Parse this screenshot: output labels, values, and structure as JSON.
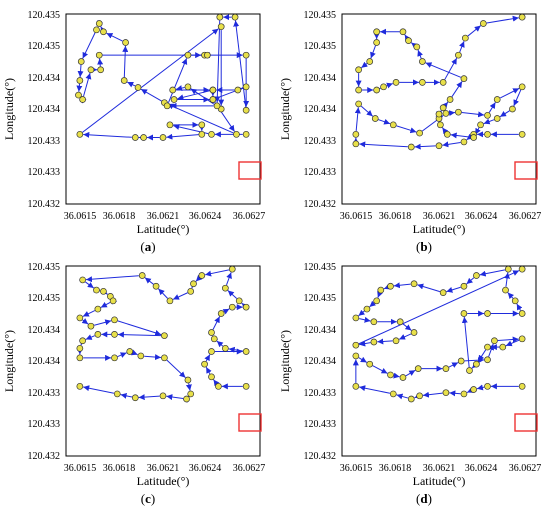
{
  "chart_data": [
    {
      "type": "line",
      "panel_label": "a",
      "xlabel": "Latitude(°)",
      "ylabel": "Longitude(°)",
      "xlim": [
        36.0614,
        36.0628
      ],
      "ylim": [
        120.432,
        120.435
      ],
      "xticks": [
        "36.0615",
        "36.0618",
        "36.0621",
        "36.0624",
        "36.0627"
      ],
      "yticks": [
        "120.432",
        "120.433",
        "120.433",
        "120.434",
        "120.434",
        "120.435",
        "120.435"
      ],
      "points": [
        [
          36.0627,
          120.4331
        ],
        [
          36.06245,
          120.4331
        ],
        [
          36.06215,
          120.43325
        ],
        [
          36.06238,
          120.43325
        ],
        [
          36.06238,
          120.4331
        ],
        [
          36.0621,
          120.43305
        ],
        [
          36.06196,
          120.43305
        ],
        [
          36.0619,
          120.43305
        ],
        [
          36.0615,
          120.4331
        ],
        [
          36.06252,
          120.4348
        ],
        [
          36.06252,
          120.4335
        ],
        [
          36.06228,
          120.43385
        ],
        [
          36.06217,
          120.4338
        ],
        [
          36.06246,
          120.4338
        ],
        [
          36.06218,
          120.43365
        ],
        [
          36.06246,
          120.43365
        ],
        [
          36.0627,
          120.43385
        ],
        [
          36.06264,
          120.4338
        ],
        [
          36.06246,
          120.4338
        ],
        [
          36.06246,
          120.43365
        ],
        [
          36.06263,
          120.4331
        ],
        [
          36.06211,
          120.4336
        ],
        [
          36.06192,
          120.43384
        ],
        [
          36.06182,
          120.43395
        ],
        [
          36.06183,
          120.43455
        ],
        [
          36.06167,
          120.43472
        ],
        [
          36.06164,
          120.43485
        ],
        [
          36.06162,
          120.43475
        ],
        [
          36.06151,
          120.43425
        ],
        [
          36.0615,
          120.43395
        ],
        [
          36.06149,
          120.43372
        ],
        [
          36.06152,
          120.43365
        ],
        [
          36.06158,
          120.43412
        ],
        [
          36.06165,
          120.43412
        ],
        [
          36.06164,
          120.43435
        ],
        [
          36.0627,
          120.43435
        ],
        [
          36.0627,
          120.43348
        ],
        [
          36.06262,
          120.43495
        ],
        [
          36.06251,
          120.43495
        ],
        [
          36.06249,
          120.43355
        ],
        [
          36.06213,
          120.43355
        ],
        [
          36.06228,
          120.43435
        ],
        [
          36.0624,
          120.43435
        ],
        [
          36.06242,
          120.43435
        ]
      ],
      "start_marker": "red-box"
    },
    {
      "type": "line",
      "panel_label": "b",
      "xlabel": "Latitude(°)",
      "ylabel": "Longitude(°)",
      "xlim": [
        36.0614,
        36.0628
      ],
      "ylim": [
        120.432,
        120.435
      ],
      "xticks": [
        "36.0615",
        "36.0618",
        "36.0621",
        "36.0624",
        "36.0627"
      ],
      "yticks": [
        "120.432",
        "120.433",
        "120.433",
        "120.434",
        "120.434",
        "120.435",
        "120.435"
      ],
      "points": [
        [
          36.0627,
          120.4331
        ],
        [
          36.06245,
          120.4331
        ],
        [
          36.06235,
          120.4331
        ],
        [
          36.06228,
          120.43298
        ],
        [
          36.0621,
          120.43292
        ],
        [
          36.0619,
          120.4329
        ],
        [
          36.0615,
          120.43295
        ],
        [
          36.0615,
          120.4331
        ],
        [
          36.06152,
          120.43358
        ],
        [
          36.06164,
          120.43335
        ],
        [
          36.06177,
          120.43325
        ],
        [
          36.06196,
          120.43312
        ],
        [
          36.06215,
          120.43343
        ],
        [
          36.06224,
          120.43345
        ],
        [
          36.06245,
          120.4334
        ],
        [
          36.06252,
          120.43365
        ],
        [
          36.0627,
          120.43385
        ],
        [
          36.06263,
          120.4335
        ],
        [
          36.06252,
          120.43335
        ],
        [
          36.0624,
          120.43325
        ],
        [
          36.06235,
          120.43305
        ],
        [
          36.06216,
          120.4331
        ],
        [
          36.06211,
          120.43325
        ],
        [
          36.0621,
          120.43335
        ],
        [
          36.0621,
          120.43342
        ],
        [
          36.06213,
          120.43352
        ],
        [
          36.06218,
          120.43365
        ],
        [
          36.06228,
          120.43398
        ],
        [
          36.06198,
          120.43425
        ],
        [
          36.06194,
          120.43448
        ],
        [
          36.06188,
          120.43458
        ],
        [
          36.06184,
          120.43472
        ],
        [
          36.06165,
          120.43472
        ],
        [
          36.06165,
          120.43455
        ],
        [
          36.0616,
          120.43425
        ],
        [
          36.06152,
          120.43412
        ],
        [
          36.06152,
          120.4338
        ],
        [
          36.06165,
          120.4338
        ],
        [
          36.0617,
          120.43385
        ],
        [
          36.06179,
          120.43392
        ],
        [
          36.06198,
          120.43392
        ],
        [
          36.06213,
          120.43392
        ],
        [
          36.06224,
          120.43435
        ],
        [
          36.06229,
          120.43462
        ],
        [
          36.06242,
          120.43485
        ],
        [
          36.0627,
          120.43495
        ]
      ],
      "start_marker": "red-box"
    },
    {
      "type": "line",
      "panel_label": "c",
      "xlabel": "Latitude(°)",
      "ylabel": "Longitude(°)",
      "xlim": [
        36.0614,
        36.0628
      ],
      "ylim": [
        120.432,
        120.435
      ],
      "xticks": [
        "36.0615",
        "36.0618",
        "36.0621",
        "36.0624",
        "36.0627"
      ],
      "yticks": [
        "120.432",
        "120.433",
        "120.433",
        "120.434",
        "120.434",
        "120.435",
        "120.435"
      ],
      "points": [
        [
          36.0627,
          120.4331
        ],
        [
          36.0625,
          120.4331
        ],
        [
          36.06245,
          120.43325
        ],
        [
          36.0624,
          120.43345
        ],
        [
          36.06245,
          120.43365
        ],
        [
          36.0627,
          120.43365
        ],
        [
          36.06255,
          120.4337
        ],
        [
          36.06247,
          120.43385
        ],
        [
          36.06245,
          120.43395
        ],
        [
          36.06252,
          120.43425
        ],
        [
          36.0626,
          120.43435
        ],
        [
          36.0627,
          120.43435
        ],
        [
          36.06265,
          120.43445
        ],
        [
          36.06255,
          120.43465
        ],
        [
          36.0626,
          120.43495
        ],
        [
          36.06238,
          120.43485
        ],
        [
          36.06232,
          120.43472
        ],
        [
          36.0623,
          120.4346
        ],
        [
          36.06215,
          120.43445
        ],
        [
          36.06205,
          120.43468
        ],
        [
          36.06195,
          120.43485
        ],
        [
          36.06152,
          120.43478
        ],
        [
          36.06162,
          120.43462
        ],
        [
          36.06167,
          120.4346
        ],
        [
          36.06172,
          120.43452
        ],
        [
          36.06174,
          120.43445
        ],
        [
          36.06163,
          120.43432
        ],
        [
          36.0615,
          120.43418
        ],
        [
          36.06158,
          120.43405
        ],
        [
          36.06175,
          120.43415
        ],
        [
          36.06211,
          120.4339
        ],
        [
          36.06175,
          120.43392
        ],
        [
          36.06163,
          120.43392
        ],
        [
          36.06152,
          120.43382
        ],
        [
          36.0615,
          120.4337
        ],
        [
          36.0615,
          120.43355
        ],
        [
          36.06175,
          120.43355
        ],
        [
          36.06186,
          120.43365
        ],
        [
          36.06194,
          120.43358
        ],
        [
          36.06211,
          120.43355
        ],
        [
          36.06228,
          120.4332
        ],
        [
          36.0623,
          120.43298
        ],
        [
          36.06227,
          120.4329
        ],
        [
          36.0621,
          120.43295
        ],
        [
          36.0619,
          120.43292
        ],
        [
          36.06177,
          120.43298
        ],
        [
          36.0615,
          120.4331
        ]
      ],
      "start_marker": "red-box"
    },
    {
      "type": "line",
      "panel_label": "d",
      "xlabel": "Latitude(°)",
      "ylabel": "Longitude(°)",
      "xlim": [
        36.0614,
        36.0628
      ],
      "ylim": [
        120.432,
        120.435
      ],
      "xticks": [
        "36.0615",
        "36.0618",
        "36.0621",
        "36.0624",
        "36.0627"
      ],
      "yticks": [
        "120.432",
        "120.433",
        "120.433",
        "120.434",
        "120.434",
        "120.435",
        "120.435"
      ],
      "points": [
        [
          36.0627,
          120.4331
        ],
        [
          36.06245,
          120.4331
        ],
        [
          36.06235,
          120.43305
        ],
        [
          36.06228,
          120.43298
        ],
        [
          36.06215,
          120.433
        ],
        [
          36.06196,
          120.43295
        ],
        [
          36.0619,
          120.4329
        ],
        [
          36.06177,
          120.43298
        ],
        [
          36.0615,
          120.4331
        ],
        [
          36.0615,
          120.43358
        ],
        [
          36.0616,
          120.43345
        ],
        [
          36.06175,
          120.43328
        ],
        [
          36.06184,
          120.43324
        ],
        [
          36.06195,
          120.43338
        ],
        [
          36.06215,
          120.43338
        ],
        [
          36.06226,
          120.4335
        ],
        [
          36.06245,
          120.43352
        ],
        [
          36.0625,
          120.43382
        ],
        [
          36.0627,
          120.43385
        ],
        [
          36.06256,
          120.43372
        ],
        [
          36.06245,
          120.43372
        ],
        [
          36.06237,
          120.43345
        ],
        [
          36.06232,
          120.43335
        ],
        [
          36.06228,
          120.43425
        ],
        [
          36.06245,
          120.43425
        ],
        [
          36.0627,
          120.43425
        ],
        [
          36.06265,
          120.43445
        ],
        [
          36.06258,
          120.43462
        ],
        [
          36.0626,
          120.43495
        ],
        [
          36.06237,
          120.43485
        ],
        [
          36.06228,
          120.43468
        ],
        [
          36.06213,
          120.43458
        ],
        [
          36.06192,
          120.43472
        ],
        [
          36.06175,
          120.43468
        ],
        [
          36.06168,
          120.43462
        ],
        [
          36.06165,
          120.43445
        ],
        [
          36.06158,
          120.43432
        ],
        [
          36.0615,
          120.43418
        ],
        [
          36.06163,
          120.43412
        ],
        [
          36.06182,
          120.43412
        ],
        [
          36.06192,
          120.43395
        ],
        [
          36.06179,
          120.43382
        ],
        [
          36.06163,
          120.4338
        ],
        [
          36.0615,
          120.43375
        ],
        [
          36.0627,
          120.43495
        ]
      ],
      "start_marker": "red-box"
    }
  ]
}
